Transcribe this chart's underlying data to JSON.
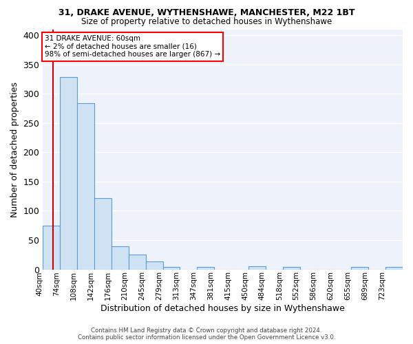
{
  "title1": "31, DRAKE AVENUE, WYTHENSHAWE, MANCHESTER, M22 1BT",
  "title2": "Size of property relative to detached houses in Wythenshawe",
  "xlabel": "Distribution of detached houses by size in Wythenshawe",
  "ylabel": "Number of detached properties",
  "footnote1": "Contains HM Land Registry data © Crown copyright and database right 2024.",
  "footnote2": "Contains public sector information licensed under the Open Government Licence v3.0.",
  "bin_labels": [
    "40sqm",
    "74sqm",
    "108sqm",
    "142sqm",
    "176sqm",
    "210sqm",
    "245sqm",
    "279sqm",
    "313sqm",
    "347sqm",
    "381sqm",
    "415sqm",
    "450sqm",
    "484sqm",
    "518sqm",
    "552sqm",
    "586sqm",
    "620sqm",
    "655sqm",
    "689sqm",
    "723sqm"
  ],
  "bar_heights": [
    75,
    328,
    284,
    122,
    39,
    25,
    14,
    4,
    0,
    4,
    0,
    0,
    5,
    0,
    4,
    0,
    0,
    0,
    4,
    0,
    4
  ],
  "bar_color": "#cfe2f3",
  "bar_edge_color": "#5b9bd5",
  "bg_color": "#eef2fa",
  "grid_color": "#ffffff",
  "annotation_text": "31 DRAKE AVENUE: 60sqm\n← 2% of detached houses are smaller (16)\n98% of semi-detached houses are larger (867) →",
  "vline_x": 60,
  "vline_color": "#cc0000",
  "ylim": [
    0,
    410
  ],
  "bin_width": 34
}
